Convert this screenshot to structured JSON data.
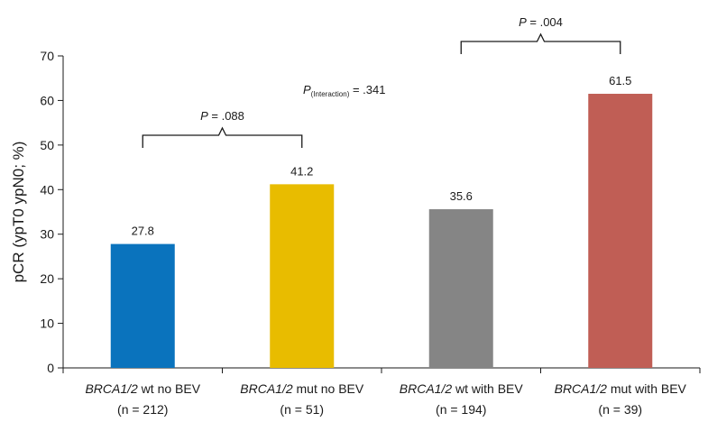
{
  "chart_data": {
    "type": "bar",
    "ylabel": "pCR (ypT0 ypN0; %)",
    "ylim": [
      0,
      70
    ],
    "yticks": [
      "0",
      "10",
      "20",
      "30",
      "40",
      "50",
      "60",
      "70"
    ],
    "categories": [
      {
        "gene": "BRCA1/2",
        "label": " wt no BEV",
        "n": "(n = 212)"
      },
      {
        "gene": "BRCA1/2",
        "label": " mut no BEV",
        "n": "(n = 51)"
      },
      {
        "gene": "BRCA1/2",
        "label": " wt with BEV",
        "n": "(n = 194)"
      },
      {
        "gene": "BRCA1/2",
        "label": " mut with BEV",
        "n": "(n = 39)"
      }
    ],
    "values": [
      27.8,
      41.2,
      35.6,
      61.5
    ],
    "value_labels": [
      "27.8",
      "41.2",
      "35.6",
      "61.5"
    ],
    "colors": [
      "#0a73bd",
      "#e8bc00",
      "#858585",
      "#c05e55"
    ],
    "annotations": {
      "p_left": {
        "p": "P",
        "value": " = .088",
        "from": 0,
        "to": 1
      },
      "p_right": {
        "p": "P",
        "value": " = .004",
        "from": 2,
        "to": 3
      },
      "p_interaction": {
        "p": "P",
        "sub": "(Interaction)",
        "value": " = .341"
      }
    }
  }
}
